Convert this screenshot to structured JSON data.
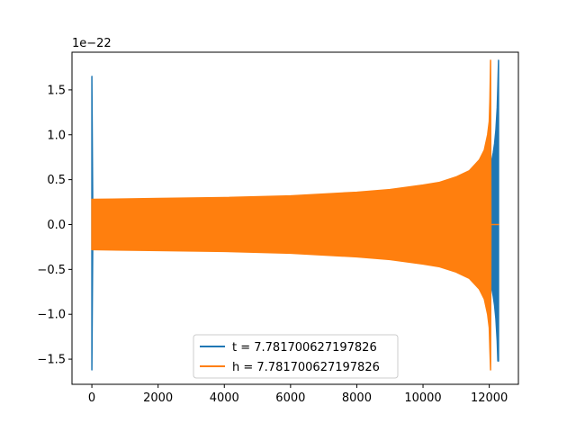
{
  "chart_data": {
    "type": "line",
    "title": "",
    "xlabel": "",
    "ylabel": "",
    "y_offset_label": "1e−22",
    "xlim": [
      -600,
      12880
    ],
    "ylim": [
      -1.78,
      1.92
    ],
    "xticks": [
      0,
      2000,
      4000,
      6000,
      8000,
      10000,
      12000
    ],
    "xtick_labels": [
      "0",
      "2000",
      "4000",
      "6000",
      "8000",
      "10000",
      "12000"
    ],
    "yticks": [
      -1.5,
      -1.0,
      -0.5,
      0.0,
      0.5,
      1.0,
      1.5
    ],
    "ytick_labels": [
      "−1.5",
      "−1.0",
      "−0.5",
      "0.0",
      "0.5",
      "1.0",
      "1.5"
    ],
    "grid": false,
    "legend_position": "lower-center",
    "series": [
      {
        "name": "t = 7.781700627197826",
        "color": "#1f77b4",
        "envelope": {
          "x": [
            0,
            30,
            40,
            12050,
            12080,
            12120,
            12160,
            12200,
            12240,
            12260,
            12280
          ],
          "upper": [
            1.65,
            0.02,
            0.0,
            0.0,
            0.72,
            0.8,
            0.9,
            1.05,
            1.3,
            1.55,
            1.83
          ],
          "lower": [
            -1.62,
            -0.02,
            0.0,
            0.0,
            -0.72,
            -0.8,
            -0.9,
            -1.05,
            -1.3,
            -1.52,
            -1.52
          ]
        }
      },
      {
        "name": "h = 7.781700627197826",
        "color": "#ff7f0e",
        "envelope": {
          "x": [
            0,
            2000,
            4000,
            6000,
            8000,
            9000,
            10000,
            10500,
            11000,
            11400,
            11700,
            11850,
            11950,
            12000,
            12020,
            12040,
            12050,
            12280
          ],
          "upper": [
            0.28,
            0.29,
            0.3,
            0.32,
            0.36,
            0.39,
            0.44,
            0.47,
            0.53,
            0.6,
            0.72,
            0.83,
            1.0,
            1.15,
            1.4,
            1.83,
            0.0,
            0.0
          ],
          "lower": [
            -0.28,
            -0.29,
            -0.3,
            -0.32,
            -0.36,
            -0.39,
            -0.44,
            -0.47,
            -0.53,
            -0.6,
            -0.72,
            -0.83,
            -1.0,
            -1.15,
            -1.4,
            -1.62,
            0.0,
            0.0
          ]
        }
      }
    ]
  }
}
